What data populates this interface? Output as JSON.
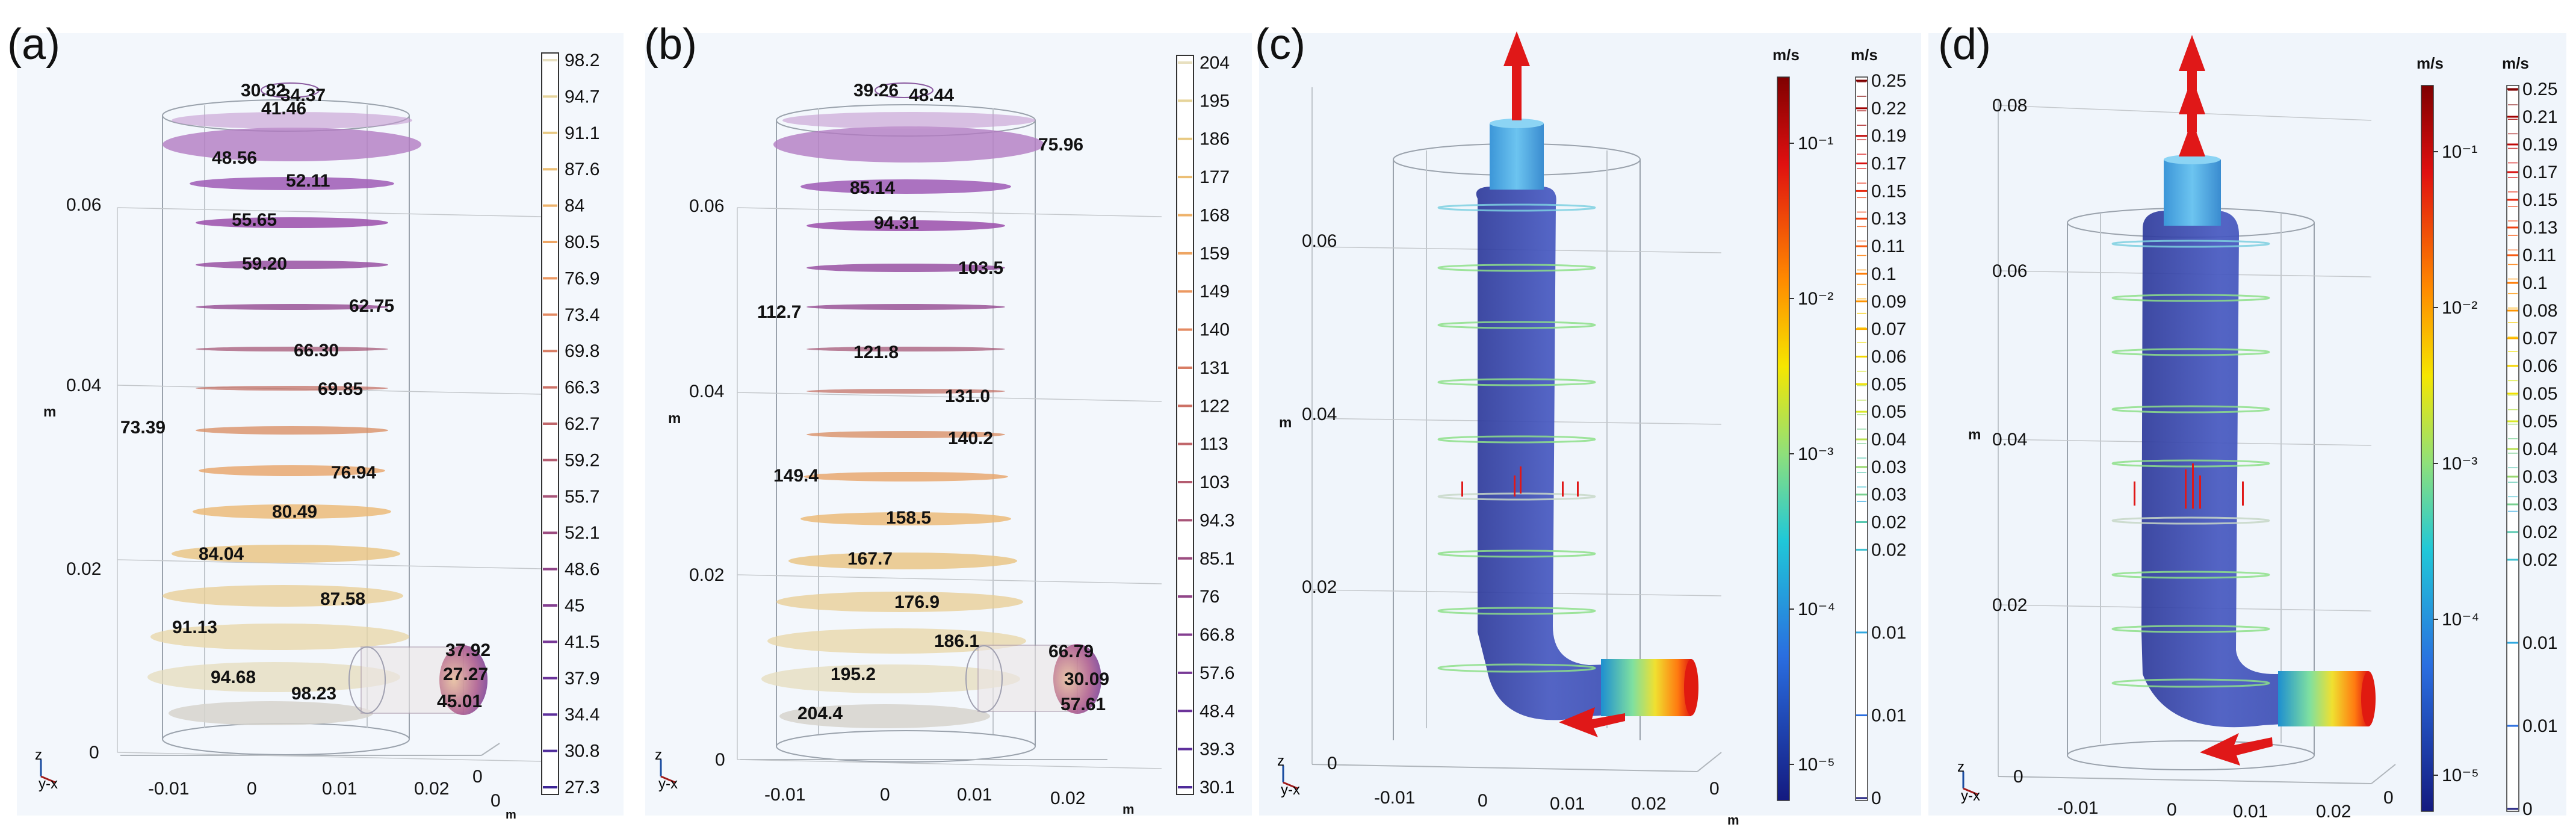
{
  "panels": [
    {
      "id": "a",
      "label": "(a)",
      "axes": {
        "z_ticks": [
          "0",
          "0.02",
          "0.04",
          "0.06"
        ],
        "x_ticks": [
          "-0.01",
          "0",
          "0.01",
          "0.02"
        ],
        "y_ticks": [
          "0",
          "0"
        ],
        "z_unit": "m",
        "x_unit": "m",
        "triad_z": "z",
        "triad_xy": "y-x"
      },
      "contour_labels": [
        "30.82",
        "34.37",
        "41.46",
        "48.56",
        "52.11",
        "55.65",
        "59.20",
        "62.75",
        "66.30",
        "69.85",
        "73.39",
        "76.94",
        "80.49",
        "84.04",
        "87.58",
        "91.13",
        "94.68",
        "98.23",
        "37.92",
        "27.27",
        "45.01"
      ],
      "colorbar": {
        "type": "discrete",
        "unit": "",
        "labels": [
          "98.2",
          "94.7",
          "91.1",
          "87.6",
          "84",
          "80.5",
          "76.9",
          "73.4",
          "69.8",
          "66.3",
          "62.7",
          "59.2",
          "55.7",
          "52.1",
          "48.6",
          "45",
          "41.5",
          "37.9",
          "34.4",
          "30.8",
          "27.3"
        ],
        "colors": [
          "#e8e0c0",
          "#e6d49a",
          "#e8c982",
          "#ecbe74",
          "#eeb26a",
          "#eea563",
          "#ec9861",
          "#e48a62",
          "#d87d64",
          "#cc7166",
          "#c0666a",
          "#b45c70",
          "#a85478",
          "#9c4c80",
          "#904588",
          "#843f90",
          "#783996",
          "#6c349a",
          "#5e309c",
          "#4e2b9a",
          "#3d2596"
        ]
      }
    },
    {
      "id": "b",
      "label": "(b)",
      "axes": {
        "z_ticks": [
          "0",
          "0.02",
          "0.04",
          "0.06"
        ],
        "x_ticks": [
          "-0.01",
          "0",
          "0.01",
          "0.02"
        ],
        "y_ticks": [],
        "z_unit": "m",
        "x_unit": "m",
        "triad_z": "z",
        "triad_xy": "y-x"
      },
      "contour_labels": [
        "39.26",
        "48.44",
        "75.96",
        "85.14",
        "94.31",
        "103.5",
        "112.7",
        "121.8",
        "131.0",
        "140.2",
        "149.4",
        "158.5",
        "167.7",
        "176.9",
        "186.1",
        "195.2",
        "204.4",
        "66.79",
        "30.09",
        "57.61"
      ],
      "colorbar": {
        "type": "discrete",
        "unit": "",
        "labels": [
          "204",
          "195",
          "186",
          "177",
          "168",
          "159",
          "149",
          "140",
          "131",
          "122",
          "113",
          "103",
          "94.3",
          "85.1",
          "76",
          "66.8",
          "57.6",
          "48.4",
          "39.3",
          "30.1"
        ],
        "colors": [
          "#e8e0c0",
          "#e6d49a",
          "#e8c982",
          "#ecbe74",
          "#eeb26a",
          "#eea563",
          "#ec9861",
          "#e48a62",
          "#d87d64",
          "#cc7166",
          "#c0666a",
          "#b45c70",
          "#a85478",
          "#9c4c80",
          "#904588",
          "#843f90",
          "#783996",
          "#6c349a",
          "#5e309c",
          "#4e2b9a"
        ]
      }
    },
    {
      "id": "c",
      "label": "(c)",
      "axes": {
        "z_ticks": [
          "0",
          "0.02",
          "0.04",
          "0.06"
        ],
        "x_ticks": [
          "-0.01",
          "0",
          "0.01",
          "0.02"
        ],
        "y_ticks": [
          "0"
        ],
        "z_unit": "m",
        "x_unit": "m",
        "triad_z": "z",
        "triad_xy": "y-x"
      },
      "colorbar_log": {
        "unit": "m/s",
        "labels": [
          "10⁻¹",
          "10⁻²",
          "10⁻³",
          "10⁻⁴",
          "10⁻⁵"
        ]
      },
      "colorbar_lin": {
        "unit": "m/s",
        "labels": [
          "0.25",
          "0.22",
          "0.19",
          "0.17",
          "0.15",
          "0.13",
          "0.11",
          "0.1",
          "0.09",
          "0.07",
          "0.06",
          "0.05",
          "0.05",
          "0.04",
          "0.03",
          "0.03",
          "0.02",
          "0.02",
          "0.01",
          "0.01",
          "0"
        ]
      }
    },
    {
      "id": "d",
      "label": "(d)",
      "axes": {
        "z_ticks": [
          "0",
          "0.02",
          "0.04",
          "0.06",
          "0.08"
        ],
        "x_ticks": [
          "-0.01",
          "0",
          "0.01",
          "0.02"
        ],
        "y_ticks": [
          "0"
        ],
        "z_unit": "m",
        "x_unit": "",
        "triad_z": "z",
        "triad_xy": "y-x"
      },
      "colorbar_log": {
        "unit": "m/s",
        "labels": [
          "10⁻¹",
          "10⁻²",
          "10⁻³",
          "10⁻⁴",
          "10⁻⁵"
        ]
      },
      "colorbar_lin": {
        "unit": "m/s",
        "labels": [
          "0.25",
          "0.21",
          "0.19",
          "0.17",
          "0.15",
          "0.13",
          "0.11",
          "0.1",
          "0.08",
          "0.07",
          "0.06",
          "0.05",
          "0.05",
          "0.04",
          "0.03",
          "0.03",
          "0.02",
          "0.02",
          "0.01",
          "0.01",
          "0"
        ]
      }
    }
  ]
}
